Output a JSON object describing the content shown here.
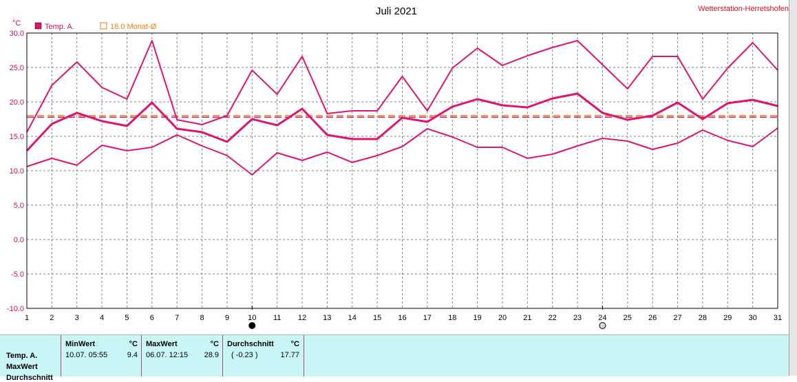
{
  "chart_data": {
    "type": "line",
    "title": "Juli 2021",
    "station": "Wetterstation-Herretshofen",
    "unit_label": "°C",
    "ylim": [
      -10,
      30
    ],
    "yticks": [
      "30.0",
      "25.0",
      "20.0",
      "15.0",
      "10.0",
      "5.0",
      "0.0",
      "-5.0",
      "-10.0"
    ],
    "ytick_values": [
      30,
      25,
      20,
      15,
      10,
      5,
      0,
      -5,
      -10
    ],
    "x": [
      1,
      2,
      3,
      4,
      5,
      6,
      7,
      8,
      9,
      10,
      11,
      12,
      13,
      14,
      15,
      16,
      17,
      18,
      19,
      20,
      21,
      22,
      23,
      24,
      25,
      26,
      27,
      28,
      29,
      30,
      31
    ],
    "grid": true,
    "legend_placement": "top-left",
    "legend": [
      {
        "label": "Temp. A.",
        "color": "#e0136e"
      },
      {
        "label": "18.0 Monat-Ø",
        "color": "#e8820e"
      }
    ],
    "series": [
      {
        "name": "Max",
        "values": [
          15.6,
          22.4,
          25.8,
          22.1,
          20.4,
          28.9,
          17.4,
          16.7,
          18.0,
          24.6,
          21.1,
          26.6,
          18.3,
          18.7,
          18.7,
          23.7,
          18.7,
          24.9,
          27.8,
          25.3,
          26.7,
          27.9,
          28.9,
          25.4,
          21.9,
          26.6,
          26.6,
          20.4,
          24.9,
          28.6,
          24.6
        ]
      },
      {
        "name": "Mittel",
        "values": [
          12.9,
          16.8,
          18.4,
          17.2,
          16.5,
          19.9,
          16.1,
          15.6,
          14.2,
          17.5,
          16.6,
          19.0,
          15.2,
          14.6,
          14.6,
          17.7,
          17.1,
          19.3,
          20.4,
          19.5,
          19.2,
          20.5,
          21.2,
          18.4,
          17.4,
          18.0,
          19.9,
          17.5,
          19.8,
          20.3,
          19.4
        ]
      },
      {
        "name": "Min",
        "values": [
          10.6,
          11.8,
          10.8,
          13.7,
          12.9,
          13.4,
          15.2,
          13.6,
          12.2,
          9.4,
          12.6,
          11.5,
          12.7,
          11.2,
          12.2,
          13.5,
          16.1,
          14.9,
          13.4,
          13.4,
          11.8,
          12.4,
          13.6,
          14.7,
          14.3,
          13.1,
          14.0,
          15.9,
          14.4,
          13.5,
          16.2
        ]
      }
    ],
    "reference_lines": [
      {
        "name": "Monat-Ø",
        "value": 18.0,
        "color": "#e8820e"
      },
      {
        "name": "Durchschnitt",
        "value": 17.77,
        "color": "#e0136e"
      }
    ],
    "moon_markers": [
      {
        "day": 10,
        "phase": "new-moon"
      },
      {
        "day": 24,
        "phase": "full-moon"
      }
    ]
  },
  "stats": {
    "row_labels": [
      "Temp. A.",
      "MaxWert",
      "Durchschnitt"
    ],
    "min": {
      "header": "MinWert",
      "unit": "°C",
      "date": "10.07.  05:55",
      "value": "9.4"
    },
    "max": {
      "header": "MaxWert",
      "unit": "°C",
      "date": "06.07.  12:15",
      "value": "28.9"
    },
    "avg": {
      "header": "Durchschnitt",
      "unit": "°C",
      "delta": "( -0.23 )",
      "value": "17.77"
    }
  }
}
